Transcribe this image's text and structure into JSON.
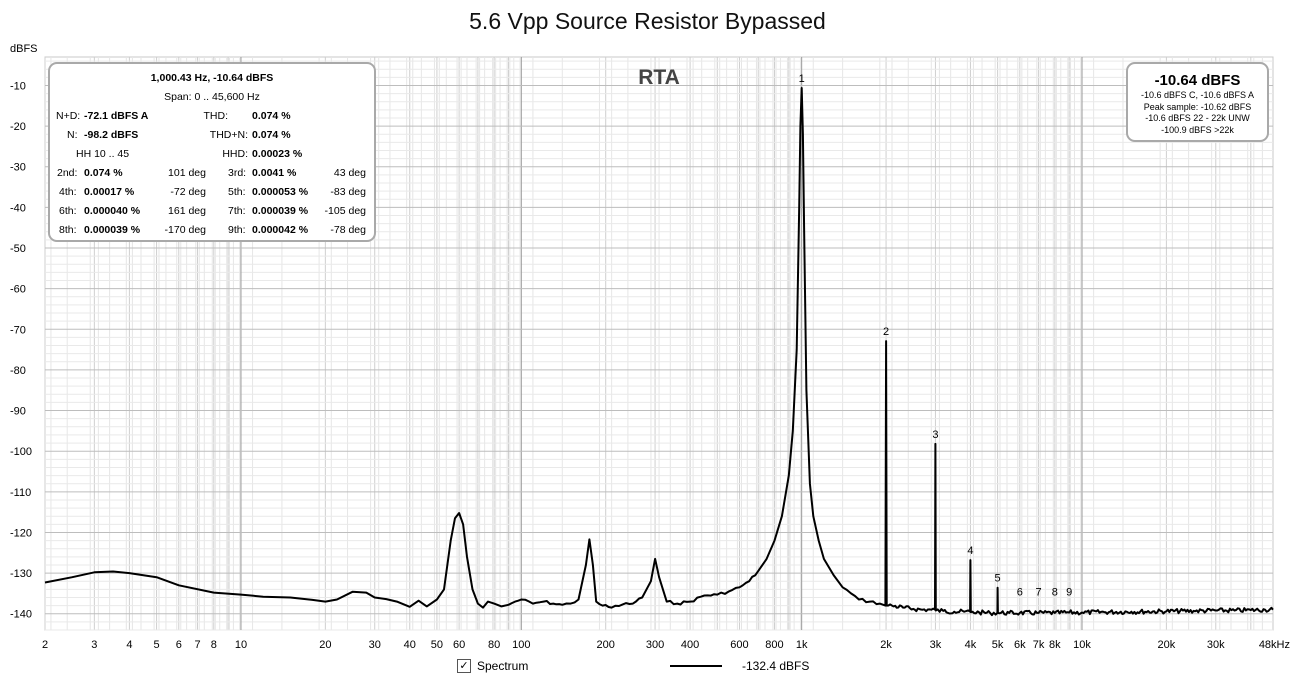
{
  "chart_data": {
    "type": "line",
    "title": "5.6 Vpp Source Resistor Bypassed",
    "ylabel": "dBFS",
    "plot_label": "RTA",
    "xscale": "log",
    "xlim_hz": [
      2,
      48000
    ],
    "ylim": [
      -144,
      -3
    ],
    "yticks": [
      -10,
      -20,
      -30,
      -40,
      -50,
      -60,
      -70,
      -80,
      -90,
      -100,
      -110,
      -120,
      -130,
      -140
    ],
    "xticks": [
      {
        "v": 2,
        "label": "2"
      },
      {
        "v": 3,
        "label": "3"
      },
      {
        "v": 4,
        "label": "4"
      },
      {
        "v": 5,
        "label": "5"
      },
      {
        "v": 6,
        "label": "6"
      },
      {
        "v": 7,
        "label": "7"
      },
      {
        "v": 8,
        "label": "8"
      },
      {
        "v": 10,
        "label": "10"
      },
      {
        "v": 20,
        "label": "20"
      },
      {
        "v": 30,
        "label": "30"
      },
      {
        "v": 40,
        "label": "40"
      },
      {
        "v": 50,
        "label": "50"
      },
      {
        "v": 60,
        "label": "60"
      },
      {
        "v": 80,
        "label": "80"
      },
      {
        "v": 100,
        "label": "100"
      },
      {
        "v": 200,
        "label": "200"
      },
      {
        "v": 300,
        "label": "300"
      },
      {
        "v": 400,
        "label": "400"
      },
      {
        "v": 600,
        "label": "600"
      },
      {
        "v": 800,
        "label": "800"
      },
      {
        "v": 1000,
        "label": "1k"
      },
      {
        "v": 2000,
        "label": "2k"
      },
      {
        "v": 3000,
        "label": "3k"
      },
      {
        "v": 4000,
        "label": "4k"
      },
      {
        "v": 5000,
        "label": "5k"
      },
      {
        "v": 6000,
        "label": "6k"
      },
      {
        "v": 7000,
        "label": "7k"
      },
      {
        "v": 8000,
        "label": "8k"
      },
      {
        "v": 10000,
        "label": "10k"
      },
      {
        "v": 20000,
        "label": "20k"
      },
      {
        "v": 30000,
        "label": "30k"
      },
      {
        "v": 48000,
        "label": "48kHz"
      }
    ],
    "grid": true,
    "series": [
      {
        "name": "Spectrum",
        "x": [
          2,
          2.5,
          3,
          3.5,
          4,
          5,
          6,
          8,
          10,
          12,
          15,
          18,
          20,
          22,
          25,
          28,
          30,
          33,
          36,
          40,
          43,
          46,
          50,
          53,
          56,
          58,
          60,
          62,
          64,
          67,
          70,
          73,
          76,
          80,
          85,
          90,
          95,
          100,
          110,
          120,
          130,
          140,
          150,
          160,
          170,
          175,
          180,
          185,
          195,
          210,
          230,
          250,
          270,
          290,
          300,
          310,
          330,
          360,
          400,
          450,
          500,
          550,
          600,
          650,
          700,
          750,
          800,
          850,
          900,
          930,
          960,
          980,
          990,
          1000,
          1010,
          1020,
          1040,
          1070,
          1100,
          1150,
          1200,
          1300,
          1400,
          1500,
          1600,
          1750,
          1900,
          1990,
          2000,
          2010,
          2100,
          2300,
          2500,
          2700,
          2900,
          2990,
          3000,
          3010,
          3200,
          3500,
          3800,
          3990,
          4000,
          4010,
          4300,
          4700,
          4990,
          5000,
          5010,
          5500,
          6000,
          7000,
          8000,
          9000,
          10000,
          12000,
          15000,
          20000,
          25000,
          30000,
          35000,
          40000,
          45000,
          48000
        ],
        "y": [
          -132.3,
          -131,
          -129.8,
          -129.6,
          -130,
          -131,
          -133,
          -134.8,
          -135.3,
          -135.8,
          -136,
          -136.6,
          -137,
          -136.5,
          -134.6,
          -134.8,
          -136,
          -136.4,
          -137,
          -138.3,
          -136.8,
          -138.2,
          -136.5,
          -134,
          -122,
          -116.5,
          -115.2,
          -118,
          -126,
          -134,
          -137.5,
          -138.5,
          -137,
          -137.5,
          -138.2,
          -137.8,
          -137,
          -136.5,
          -137.5,
          -137,
          -137.5,
          -137.8,
          -137.5,
          -136.5,
          -128,
          -121.7,
          -128,
          -137,
          -138,
          -138.5,
          -137.7,
          -137.5,
          -136,
          -132,
          -126.5,
          -131,
          -137,
          -137.5,
          -137,
          -135.5,
          -135.3,
          -134.5,
          -133.5,
          -132,
          -129.5,
          -126.5,
          -122,
          -116,
          -106,
          -95,
          -75,
          -40,
          -20,
          -10.64,
          -22,
          -45,
          -85,
          -108,
          -116,
          -122,
          -126.5,
          -130.5,
          -133.5,
          -135,
          -136.5,
          -137,
          -137.5,
          -138,
          -72.9,
          -138,
          -138,
          -138.5,
          -138.8,
          -139,
          -139,
          -139,
          -98.2,
          -139.2,
          -139.3,
          -139.5,
          -139.5,
          -139.5,
          -126.8,
          -139.6,
          -139.7,
          -139.8,
          -139.8,
          -133.6,
          -139.8,
          -139.8,
          -139.8,
          -139.8,
          -139.8,
          -139.7,
          -139.7,
          -139.6,
          -139.5,
          -139.4,
          -139.3,
          -139.2,
          -139.2,
          -139.1,
          -139,
          -139
        ]
      }
    ],
    "harmonic_markers": [
      {
        "label": "1",
        "x": 1000,
        "y": -10.64
      },
      {
        "label": "2",
        "x": 2000,
        "y": -72.9
      },
      {
        "label": "3",
        "x": 3000,
        "y": -98.2
      },
      {
        "label": "4",
        "x": 4000,
        "y": -126.8
      },
      {
        "label": "5",
        "x": 5000,
        "y": -133.6
      },
      {
        "label": "6",
        "x": 6000,
        "y": -137
      },
      {
        "label": "7",
        "x": 7000,
        "y": -137
      },
      {
        "label": "8",
        "x": 8000,
        "y": -137
      },
      {
        "label": "9",
        "x": 9000,
        "y": -137
      }
    ],
    "legend": {
      "entry": "Spectrum",
      "value": "-132.4 dBFS",
      "checked": true,
      "check_glyph": "✓"
    }
  },
  "stats": {
    "header": "1,000.43 Hz, -10.64 dBFS",
    "span": "Span: 0 .. 45,600 Hz",
    "nd_label": "N+D:",
    "nd_value": "-72.1 dBFS A",
    "thd_label": "THD:",
    "thd_value": "0.074 %",
    "n_label": "N:",
    "n_value": "-98.2 dBFS",
    "thdn_label": "THD+N:",
    "thdn_value": "0.074 %",
    "hh_label": "HH 10 .. 45",
    "hhd_label": "HHD:",
    "hhd_value": "0.00023 %",
    "harmonics": [
      {
        "label": "2nd:",
        "value": "0.074 %",
        "phase": "101 deg"
      },
      {
        "label": "3rd:",
        "value": "0.0041 %",
        "phase": "43 deg"
      },
      {
        "label": "4th:",
        "value": "0.00017 %",
        "phase": "-72 deg"
      },
      {
        "label": "5th:",
        "value": "0.000053 %",
        "phase": "-83 deg"
      },
      {
        "label": "6th:",
        "value": "0.000040 %",
        "phase": "161 deg"
      },
      {
        "label": "7th:",
        "value": "0.000039 %",
        "phase": "-105 deg"
      },
      {
        "label": "8th:",
        "value": "0.000039 %",
        "phase": "-170 deg"
      },
      {
        "label": "9th:",
        "value": "0.000042 %",
        "phase": "-78 deg"
      }
    ]
  },
  "level": {
    "main": "-10.64 dBFS",
    "line1": "-10.6 dBFS C, -10.6 dBFS A",
    "line2": "Peak sample: -10.62 dBFS",
    "line3": "-10.6 dBFS 22 - 22k UNW",
    "line4": "-100.9 dBFS >22k"
  }
}
